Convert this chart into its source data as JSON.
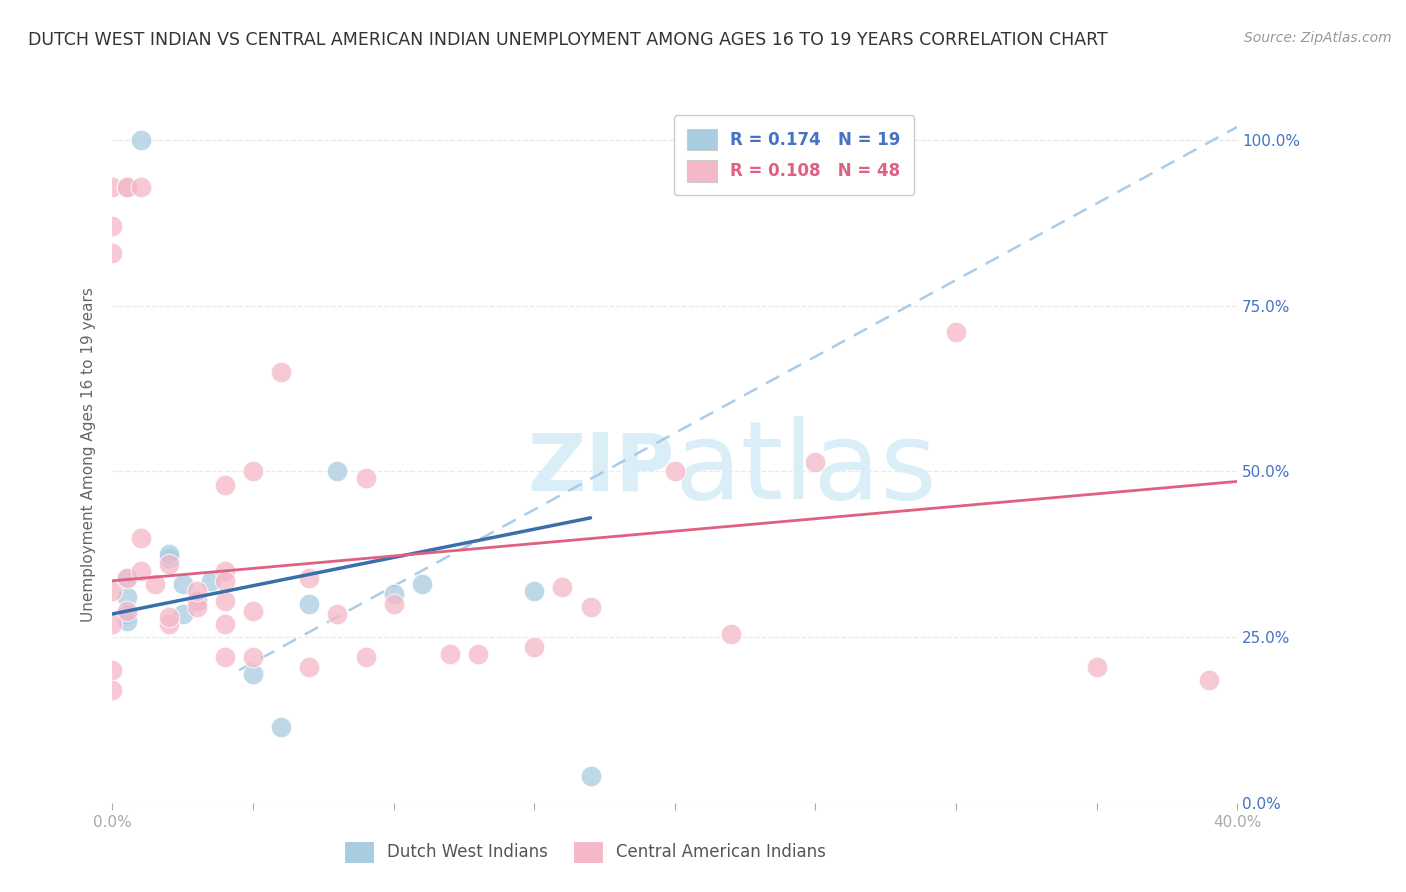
{
  "title": "DUTCH WEST INDIAN VS CENTRAL AMERICAN INDIAN UNEMPLOYMENT AMONG AGES 16 TO 19 YEARS CORRELATION CHART",
  "source": "Source: ZipAtlas.com",
  "ylabel": "Unemployment Among Ages 16 to 19 years",
  "xmin": 0.0,
  "xmax": 0.4,
  "ymin": 0.0,
  "ymax": 1.05,
  "ytick_labels": [
    "0.0%",
    "25.0%",
    "50.0%",
    "75.0%",
    "100.0%"
  ],
  "ytick_values": [
    0.0,
    0.25,
    0.5,
    0.75,
    1.0
  ],
  "R_blue": 0.174,
  "N_blue": 19,
  "R_pink": 0.108,
  "N_pink": 48,
  "blue_color": "#a8cce0",
  "pink_color": "#f4b8c8",
  "blue_line_color": "#3a6fad",
  "pink_line_color": "#e06080",
  "dashed_line_color": "#aacce8",
  "watermark_color": "#daeef8",
  "background_color": "#ffffff",
  "grid_color": "#e8e8e8",
  "title_fontsize": 12.5,
  "source_fontsize": 10,
  "axis_label_fontsize": 11,
  "tick_fontsize": 11,
  "legend_fontsize": 12,
  "watermark_fontsize": 58,
  "blue_scatter_x": [
    0.01,
    0.005,
    0.005,
    0.005,
    0.005,
    0.02,
    0.02,
    0.025,
    0.025,
    0.03,
    0.035,
    0.05,
    0.06,
    0.07,
    0.08,
    0.1,
    0.11,
    0.15,
    0.17
  ],
  "blue_scatter_y": [
    1.0,
    0.34,
    0.31,
    0.285,
    0.275,
    0.37,
    0.375,
    0.33,
    0.285,
    0.305,
    0.335,
    0.195,
    0.115,
    0.3,
    0.5,
    0.315,
    0.33,
    0.32,
    0.04
  ],
  "pink_scatter_x": [
    0.0,
    0.0,
    0.0,
    0.0,
    0.0,
    0.0,
    0.0,
    0.005,
    0.005,
    0.01,
    0.01,
    0.015,
    0.02,
    0.02,
    0.03,
    0.03,
    0.04,
    0.04,
    0.04,
    0.04,
    0.05,
    0.05,
    0.06,
    0.07,
    0.08,
    0.09,
    0.1,
    0.12,
    0.13,
    0.15,
    0.16,
    0.17,
    0.2,
    0.22,
    0.25,
    0.3,
    0.35,
    0.39,
    0.005,
    0.005,
    0.01,
    0.02,
    0.03,
    0.04,
    0.04,
    0.05,
    0.07,
    0.09
  ],
  "pink_scatter_y": [
    0.93,
    0.87,
    0.83,
    0.32,
    0.27,
    0.2,
    0.17,
    0.34,
    0.29,
    0.35,
    0.4,
    0.33,
    0.36,
    0.27,
    0.305,
    0.295,
    0.48,
    0.35,
    0.305,
    0.27,
    0.5,
    0.29,
    0.65,
    0.34,
    0.285,
    0.49,
    0.3,
    0.225,
    0.225,
    0.235,
    0.325,
    0.295,
    0.5,
    0.255,
    0.515,
    0.71,
    0.205,
    0.185,
    0.93,
    0.93,
    0.93,
    0.28,
    0.32,
    0.335,
    0.22,
    0.22,
    0.205,
    0.22
  ],
  "blue_line_x": [
    0.0,
    0.17
  ],
  "blue_line_y": [
    0.285,
    0.43
  ],
  "pink_line_x": [
    0.0,
    0.4
  ],
  "pink_line_y": [
    0.335,
    0.485
  ],
  "dashed_line_x": [
    0.045,
    0.4
  ],
  "dashed_line_y": [
    0.2,
    1.02
  ]
}
